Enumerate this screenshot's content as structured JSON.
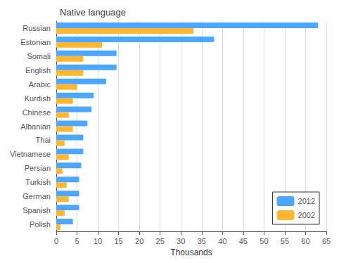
{
  "chart_data": {
    "type": "bar",
    "orientation": "horizontal",
    "title": "Native language",
    "xlabel": "Thousands",
    "categories": [
      "Russian",
      "Estonian",
      "Somali",
      "English",
      "Arabic",
      "Kurdish",
      "Chinese",
      "Albanian",
      "Thai",
      "Vietnamese",
      "Persian",
      "Turkish",
      "German",
      "Spanish",
      "Polish"
    ],
    "series": [
      {
        "name": "2012",
        "color": "#4da6ff",
        "values": [
          63,
          38,
          14.5,
          14.5,
          12,
          9,
          8.5,
          7.5,
          6.5,
          6.5,
          6,
          5.5,
          5.5,
          5.5,
          4
        ]
      },
      {
        "name": "2002",
        "color": "#ffb732",
        "values": [
          33,
          11,
          6.5,
          6.5,
          5,
          4,
          3,
          4,
          2,
          3,
          1.5,
          2.5,
          3,
          2,
          1
        ]
      }
    ],
    "xlim": [
      0,
      65
    ],
    "xticks": [
      0,
      5,
      10,
      15,
      20,
      25,
      30,
      35,
      40,
      45,
      50,
      55,
      60,
      65
    ],
    "grid": true,
    "legend": "lower right"
  }
}
